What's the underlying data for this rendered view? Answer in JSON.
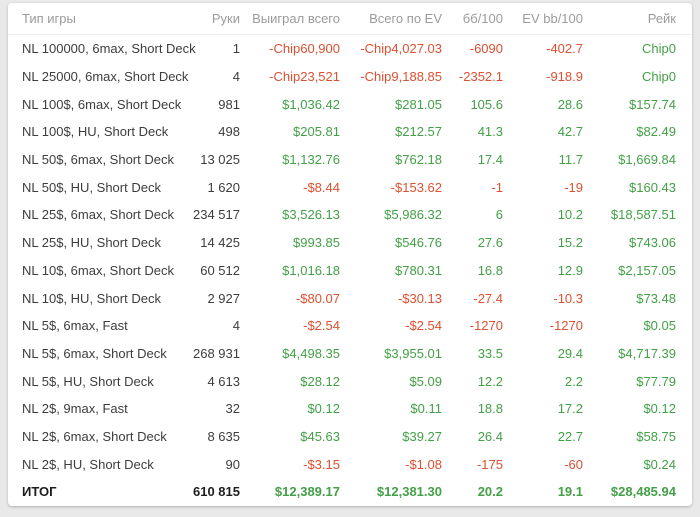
{
  "colors": {
    "positive": "#43a047",
    "negative": "#dd5031",
    "header_text": "#9b9b9b",
    "body_text": "#3d3d3d",
    "page_background": "#e9e9e9",
    "card_background": "#ffffff"
  },
  "table": {
    "columns": [
      {
        "key": "type",
        "label": "Тип игры"
      },
      {
        "key": "hands",
        "label": "Руки"
      },
      {
        "key": "won",
        "label": "Выиграл всего"
      },
      {
        "key": "ev",
        "label": "Всего по EV"
      },
      {
        "key": "bb100",
        "label": "бб/100"
      },
      {
        "key": "evbb100",
        "label": "EV bb/100"
      },
      {
        "key": "rake",
        "label": "Рейк"
      }
    ],
    "rows": [
      {
        "cells": [
          "NL 100000, 6max, Short Deck",
          "1",
          "-Chip60,900",
          "-Chip4,027.03",
          "-6090",
          "-402.7",
          "Chip0"
        ],
        "tones": [
          "",
          "",
          "neg",
          "neg",
          "neg",
          "neg",
          "pos"
        ]
      },
      {
        "cells": [
          "NL 25000, 6max, Short Deck",
          "4",
          "-Chip23,521",
          "-Chip9,188.85",
          "-2352.1",
          "-918.9",
          "Chip0"
        ],
        "tones": [
          "",
          "",
          "neg",
          "neg",
          "neg",
          "neg",
          "pos"
        ]
      },
      {
        "cells": [
          "NL 100$, 6max, Short Deck",
          "981",
          "$1,036.42",
          "$281.05",
          "105.6",
          "28.6",
          "$157.74"
        ],
        "tones": [
          "",
          "",
          "pos",
          "pos",
          "pos",
          "pos",
          "pos"
        ]
      },
      {
        "cells": [
          "NL 100$, HU, Short Deck",
          "498",
          "$205.81",
          "$212.57",
          "41.3",
          "42.7",
          "$82.49"
        ],
        "tones": [
          "",
          "",
          "pos",
          "pos",
          "pos",
          "pos",
          "pos"
        ]
      },
      {
        "cells": [
          "NL 50$, 6max, Short Deck",
          "13 025",
          "$1,132.76",
          "$762.18",
          "17.4",
          "11.7",
          "$1,669.84"
        ],
        "tones": [
          "",
          "",
          "pos",
          "pos",
          "pos",
          "pos",
          "pos"
        ]
      },
      {
        "cells": [
          "NL 50$, HU, Short Deck",
          "1 620",
          "-$8.44",
          "-$153.62",
          "-1",
          "-19",
          "$160.43"
        ],
        "tones": [
          "",
          "",
          "neg",
          "neg",
          "neg",
          "neg",
          "pos"
        ]
      },
      {
        "cells": [
          "NL 25$, 6max, Short Deck",
          "234 517",
          "$3,526.13",
          "$5,986.32",
          "6",
          "10.2",
          "$18,587.51"
        ],
        "tones": [
          "",
          "",
          "pos",
          "pos",
          "pos",
          "pos",
          "pos"
        ]
      },
      {
        "cells": [
          "NL 25$, HU, Short Deck",
          "14 425",
          "$993.85",
          "$546.76",
          "27.6",
          "15.2",
          "$743.06"
        ],
        "tones": [
          "",
          "",
          "pos",
          "pos",
          "pos",
          "pos",
          "pos"
        ]
      },
      {
        "cells": [
          "NL 10$, 6max, Short Deck",
          "60 512",
          "$1,016.18",
          "$780.31",
          "16.8",
          "12.9",
          "$2,157.05"
        ],
        "tones": [
          "",
          "",
          "pos",
          "pos",
          "pos",
          "pos",
          "pos"
        ]
      },
      {
        "cells": [
          "NL 10$, HU, Short Deck",
          "2 927",
          "-$80.07",
          "-$30.13",
          "-27.4",
          "-10.3",
          "$73.48"
        ],
        "tones": [
          "",
          "",
          "neg",
          "neg",
          "neg",
          "neg",
          "pos"
        ]
      },
      {
        "cells": [
          "NL 5$, 6max, Fast",
          "4",
          "-$2.54",
          "-$2.54",
          "-1270",
          "-1270",
          "$0.05"
        ],
        "tones": [
          "",
          "",
          "neg",
          "neg",
          "neg",
          "neg",
          "pos"
        ]
      },
      {
        "cells": [
          "NL 5$, 6max, Short Deck",
          "268 931",
          "$4,498.35",
          "$3,955.01",
          "33.5",
          "29.4",
          "$4,717.39"
        ],
        "tones": [
          "",
          "",
          "pos",
          "pos",
          "pos",
          "pos",
          "pos"
        ]
      },
      {
        "cells": [
          "NL 5$, HU, Short Deck",
          "4 613",
          "$28.12",
          "$5.09",
          "12.2",
          "2.2",
          "$77.79"
        ],
        "tones": [
          "",
          "",
          "pos",
          "pos",
          "pos",
          "pos",
          "pos"
        ]
      },
      {
        "cells": [
          "NL 2$, 9max, Fast",
          "32",
          "$0.12",
          "$0.11",
          "18.8",
          "17.2",
          "$0.12"
        ],
        "tones": [
          "",
          "",
          "pos",
          "pos",
          "pos",
          "pos",
          "pos"
        ]
      },
      {
        "cells": [
          "NL 2$, 6max, Short Deck",
          "8 635",
          "$45.63",
          "$39.27",
          "26.4",
          "22.7",
          "$58.75"
        ],
        "tones": [
          "",
          "",
          "pos",
          "pos",
          "pos",
          "pos",
          "pos"
        ]
      },
      {
        "cells": [
          "NL 2$, HU, Short Deck",
          "90",
          "-$3.15",
          "-$1.08",
          "-175",
          "-60",
          "$0.24"
        ],
        "tones": [
          "",
          "",
          "neg",
          "neg",
          "neg",
          "neg",
          "pos"
        ]
      }
    ],
    "total": {
      "cells": [
        "ИТОГ",
        "610 815",
        "$12,389.17",
        "$12,381.30",
        "20.2",
        "19.1",
        "$28,485.94"
      ],
      "tones": [
        "",
        "",
        "pos",
        "pos",
        "pos",
        "pos",
        "pos"
      ]
    }
  }
}
